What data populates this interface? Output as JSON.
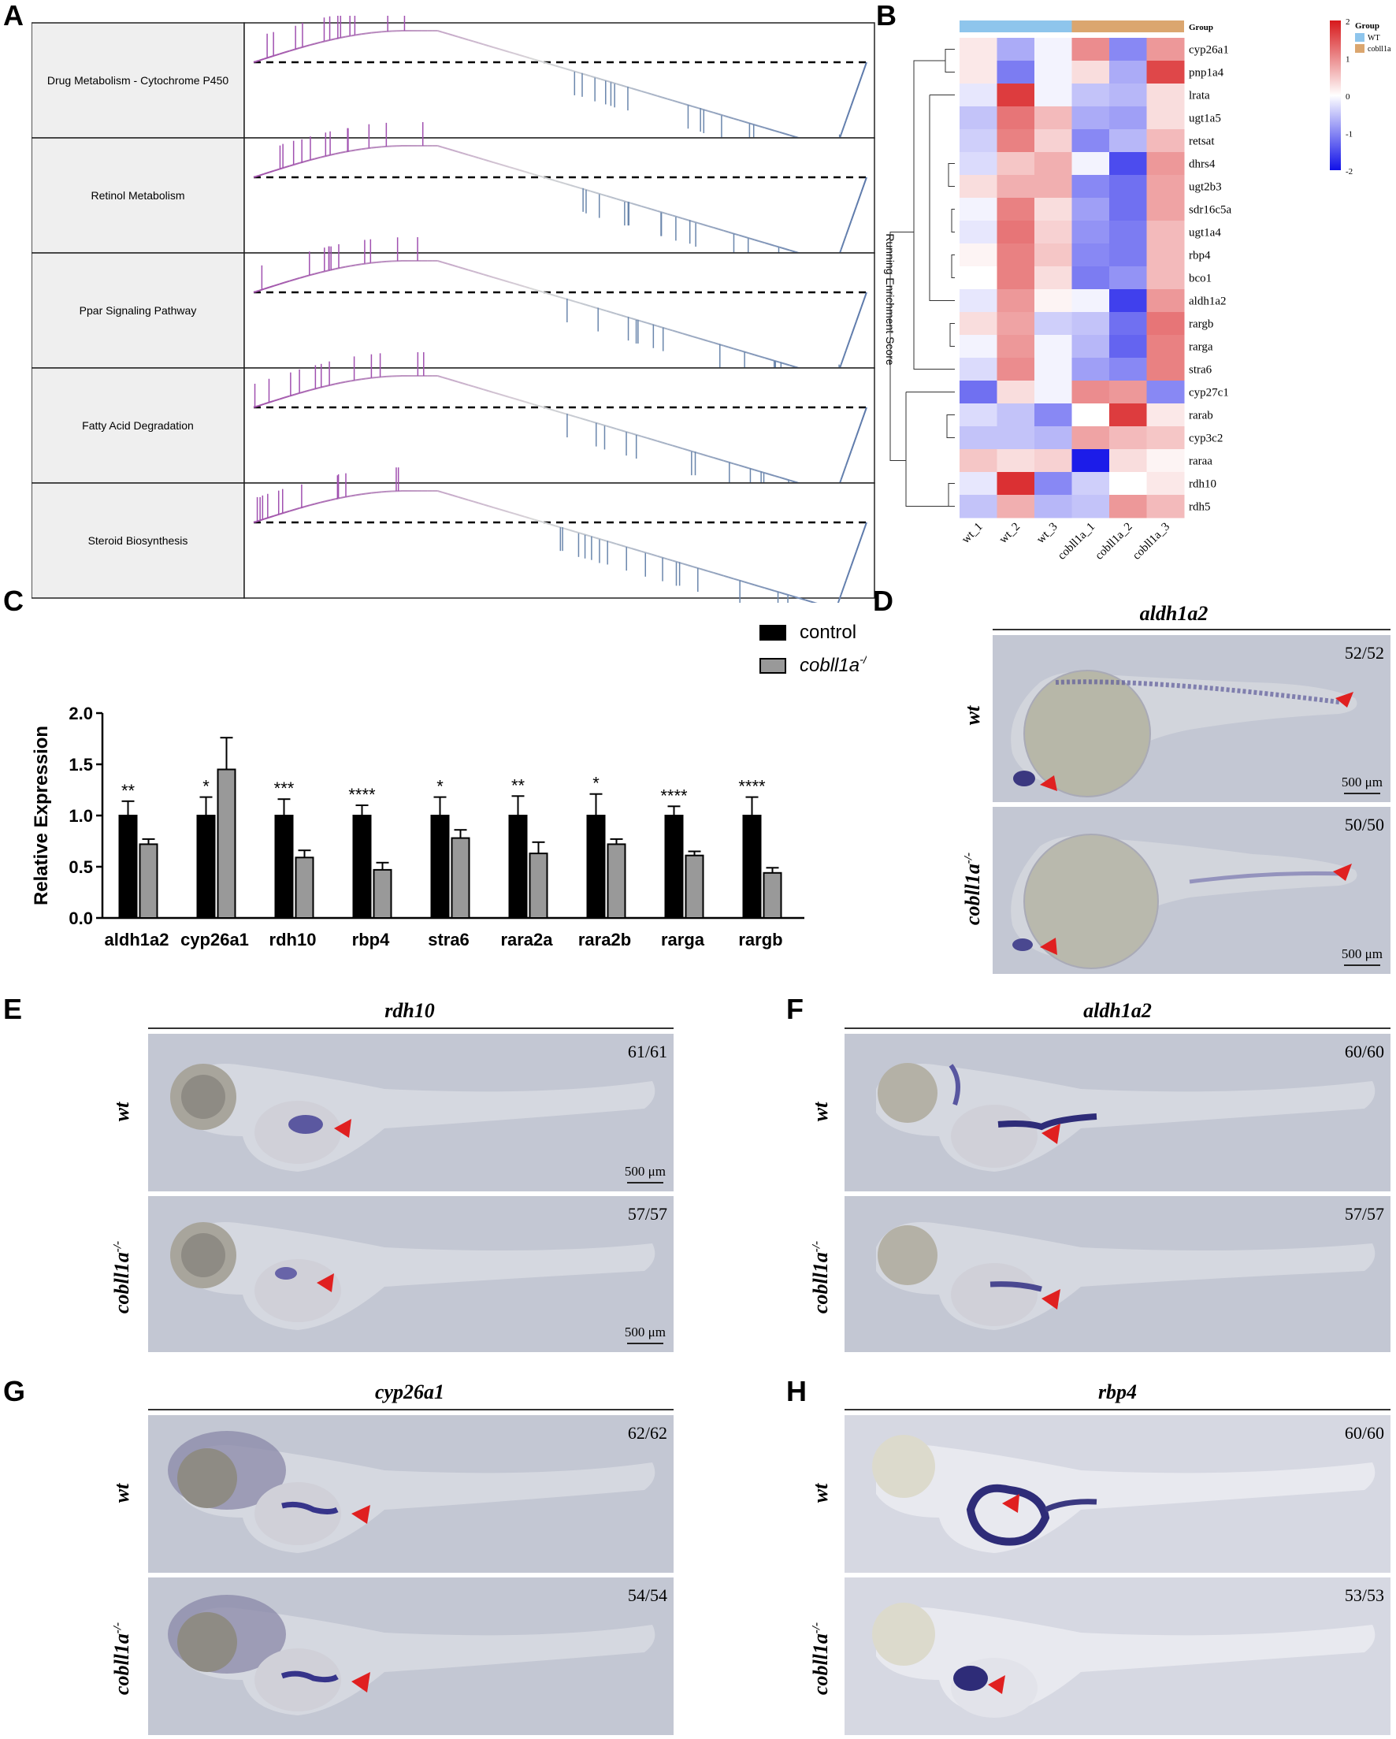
{
  "panels": {
    "a": {
      "label": "A",
      "pathways": [
        "Drug Metabolism - Cytochrome P450",
        "Retinol Metabolism",
        "Ppar Signaling Pathway",
        "Fatty Acid Degradation",
        "Steroid Biosynthesis"
      ],
      "axis_label": "Running Enrichment Score"
    },
    "b": {
      "label": "B",
      "legend_title": "Group",
      "legend_groups": [
        {
          "name": "WT",
          "color": "#8ec5ec"
        },
        {
          "name": "cobll1a",
          "color": "#dba66f"
        }
      ],
      "scale_ticks": [
        "2",
        "1",
        "0",
        "-1",
        "-2"
      ],
      "colors": {
        "high": "#d7191c",
        "mid": "#ffffff",
        "low": "#1010e8"
      }
    },
    "c": {
      "label": "C"
    },
    "d": {
      "label": "D",
      "gene": "aldh1a2",
      "top_label": "wt",
      "bottom_label": "cobll1a-/-",
      "top_count": "52/52",
      "bottom_count": "50/50",
      "scale": "500 μm"
    },
    "e": {
      "label": "E",
      "gene": "rdh10",
      "top_label": "wt",
      "bottom_label": "cobll1a-/-",
      "top_count": "61/61",
      "bottom_count": "57/57",
      "scale": "500 μm"
    },
    "f": {
      "label": "F",
      "gene": "aldh1a2",
      "top_label": "wt",
      "bottom_label": "cobll1a-/-",
      "top_count": "60/60",
      "bottom_count": "57/57"
    },
    "g": {
      "label": "G",
      "gene": "cyp26a1",
      "top_label": "wt",
      "bottom_label": "cobll1a-/-",
      "top_count": "62/62",
      "bottom_count": "54/54"
    },
    "h": {
      "label": "H",
      "gene": "rbp4",
      "top_label": "wt",
      "bottom_label": "cobll1a-/-",
      "top_count": "60/60",
      "bottom_count": "53/53"
    }
  },
  "chart_data": [
    {
      "type": "heatmap",
      "columns": [
        "wt_1",
        "wt_2",
        "wt_3",
        "cobll1a_1",
        "cobll1a_2",
        "cobll1a_3"
      ],
      "column_groups": [
        "WT",
        "WT",
        "WT",
        "cobll1a",
        "cobll1a",
        "cobll1a"
      ],
      "rows": [
        "cyp26a1",
        "pnp1a4",
        "lrata",
        "ugt1a5",
        "retsat",
        "dhrs4",
        "ugt2b3",
        "sdr16c5a",
        "ugt1a4",
        "rbp4",
        "bco1",
        "aldh1a2",
        "rargb",
        "rarga",
        "stra6",
        "cyp27c1",
        "rarab",
        "cyp3c2",
        "raraa",
        "rdh10",
        "rdh5"
      ],
      "values": [
        [
          0.2,
          -0.7,
          -0.1,
          1.0,
          -1.0,
          0.9
        ],
        [
          0.2,
          -1.1,
          -0.1,
          0.3,
          -0.7,
          1.6
        ],
        [
          -0.2,
          1.7,
          -0.1,
          -0.5,
          -0.6,
          0.3
        ],
        [
          -0.5,
          1.2,
          0.6,
          -0.7,
          -0.8,
          0.3
        ],
        [
          -0.4,
          1.1,
          0.4,
          -1.0,
          -0.6,
          0.6
        ],
        [
          -0.3,
          0.5,
          0.7,
          -0.1,
          -1.5,
          0.9
        ],
        [
          0.3,
          0.7,
          0.7,
          -1.0,
          -1.2,
          0.8
        ],
        [
          -0.1,
          1.1,
          0.3,
          -0.8,
          -1.2,
          0.8
        ],
        [
          -0.2,
          1.2,
          0.4,
          -0.9,
          -1.1,
          0.6
        ],
        [
          0.1,
          1.1,
          0.5,
          -1.0,
          -1.1,
          0.6
        ],
        [
          0.0,
          1.1,
          0.3,
          -1.1,
          -0.9,
          0.6
        ],
        [
          -0.2,
          0.9,
          0.1,
          -0.1,
          -1.6,
          0.9
        ],
        [
          0.3,
          0.8,
          -0.4,
          -0.5,
          -1.2,
          1.2
        ],
        [
          -0.1,
          0.9,
          -0.1,
          -0.6,
          -1.3,
          1.1
        ],
        [
          -0.3,
          1.0,
          -0.1,
          -0.8,
          -1.0,
          1.1
        ],
        [
          -1.2,
          0.3,
          -0.1,
          1.0,
          0.9,
          -1.0
        ],
        [
          -0.3,
          -0.5,
          -1.0,
          0.0,
          1.7,
          0.2
        ],
        [
          -0.5,
          -0.5,
          -0.6,
          0.8,
          0.6,
          0.5
        ],
        [
          0.5,
          0.3,
          0.4,
          -1.9,
          0.3,
          0.1
        ],
        [
          -0.2,
          1.8,
          -1.0,
          -0.4,
          0.0,
          0.2
        ],
        [
          -0.5,
          0.7,
          -0.6,
          -0.5,
          0.9,
          0.6
        ]
      ],
      "scale_range": [
        -2,
        2
      ]
    },
    {
      "type": "bar",
      "categories": [
        "aldh1a2",
        "cyp26a1",
        "rdh10",
        "rbp4",
        "stra6",
        "rara2a",
        "rara2b",
        "rarga",
        "rargb"
      ],
      "series": [
        {
          "name": "control",
          "color": "#000000",
          "values": [
            1.0,
            1.0,
            1.0,
            1.0,
            1.0,
            1.0,
            1.0,
            1.0,
            1.0
          ],
          "errors": [
            0.14,
            0.18,
            0.16,
            0.1,
            0.18,
            0.19,
            0.21,
            0.09,
            0.18
          ]
        },
        {
          "name": "cobll1a-/-",
          "color": "#999999",
          "values": [
            0.72,
            1.45,
            0.59,
            0.47,
            0.78,
            0.63,
            0.72,
            0.61,
            0.44
          ],
          "errors": [
            0.05,
            0.31,
            0.07,
            0.07,
            0.08,
            0.11,
            0.05,
            0.04,
            0.05
          ]
        }
      ],
      "significance": [
        "**",
        "*",
        "***",
        "****",
        "*",
        "**",
        "*",
        "****",
        "****"
      ],
      "ylabel": "Relative Expression",
      "yticks": [
        "0.0",
        "0.5",
        "1.0",
        "1.5",
        "2.0"
      ],
      "ylim": [
        0,
        2.0
      ]
    }
  ]
}
